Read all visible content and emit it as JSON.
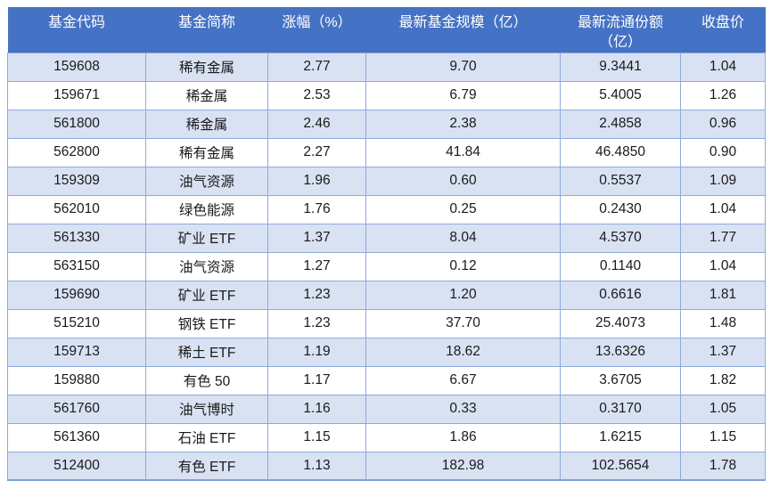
{
  "chart_data": {
    "type": "table",
    "columns": [
      "基金代码",
      "基金简称",
      "涨幅（%）",
      "最新基金规模（亿）",
      "最新流通份额（亿）",
      "收盘价"
    ],
    "rows": [
      [
        "159608",
        "稀有金属",
        "2.77",
        "9.70",
        "9.3441",
        "1.04"
      ],
      [
        "159671",
        "稀金属",
        "2.53",
        "6.79",
        "5.4005",
        "1.26"
      ],
      [
        "561800",
        "稀金属",
        "2.46",
        "2.38",
        "2.4858",
        "0.96"
      ],
      [
        "562800",
        "稀有金属",
        "2.27",
        "41.84",
        "46.4850",
        "0.90"
      ],
      [
        "159309",
        "油气资源",
        "1.96",
        "0.60",
        "0.5537",
        "1.09"
      ],
      [
        "562010",
        "绿色能源",
        "1.76",
        "0.25",
        "0.2430",
        "1.04"
      ],
      [
        "561330",
        "矿业 ETF",
        "1.37",
        "8.04",
        "4.5370",
        "1.77"
      ],
      [
        "563150",
        "油气资源",
        "1.27",
        "0.12",
        "0.1140",
        "1.04"
      ],
      [
        "159690",
        "矿业 ETF",
        "1.23",
        "1.20",
        "0.6616",
        "1.81"
      ],
      [
        "515210",
        "钢铁 ETF",
        "1.23",
        "37.70",
        "25.4073",
        "1.48"
      ],
      [
        "159713",
        "稀土 ETF",
        "1.19",
        "18.62",
        "13.6326",
        "1.37"
      ],
      [
        "159880",
        "有色 50",
        "1.17",
        "6.67",
        "3.6705",
        "1.82"
      ],
      [
        "561760",
        "油气博时",
        "1.16",
        "0.33",
        "0.3170",
        "1.05"
      ],
      [
        "561360",
        "石油 ETF",
        "1.15",
        "1.86",
        "1.6215",
        "1.15"
      ],
      [
        "512400",
        "有色 ETF",
        "1.13",
        "182.98",
        "102.5654",
        "1.78"
      ]
    ]
  },
  "table": {
    "headers": {
      "code": "基金代码",
      "name": "基金简称",
      "change": "涨幅（%）",
      "size": "最新基金规模（亿）",
      "shares": "最新流通份额\n（亿）",
      "close": "收盘价"
    },
    "column_keys": [
      "fund-code",
      "fund-name",
      "change-pct",
      "fund-size",
      "circulating-shares",
      "close-price"
    ]
  },
  "colors": {
    "header_bg": "#4472C4",
    "header_text": "#FFFFFF",
    "banded_row_bg": "#D9E2F3",
    "plain_row_bg": "#FFFFFF",
    "cell_border": "#8EAADB",
    "table_bottom_border": "#7F9FD9",
    "cell_text": "#1A1A1A"
  }
}
